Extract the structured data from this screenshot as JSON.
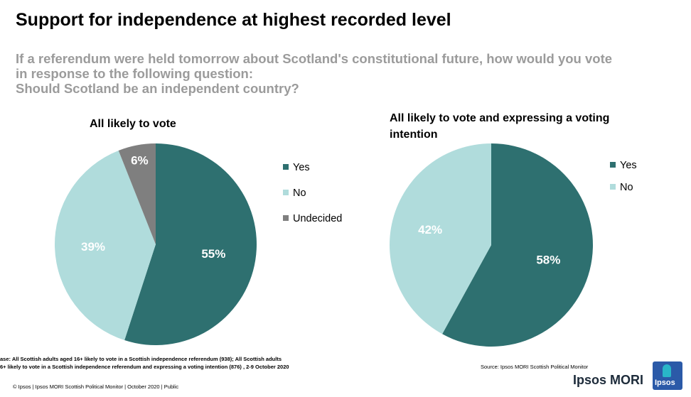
{
  "title": "Support for independence at highest recorded level",
  "question": {
    "line1": "If a referendum were held tomorrow about Scotland's constitutional future, how would you vote",
    "line2": "in response to the following question:",
    "line3": "Should Scotland be an independent country?"
  },
  "colors": {
    "yes": "#2e7070",
    "no": "#b0dcdc",
    "undecided": "#7f7f7f"
  },
  "chart_data": [
    {
      "type": "pie",
      "title": "All likely to vote",
      "slices": [
        {
          "label": "Yes",
          "value": 55,
          "display": "55%"
        },
        {
          "label": "No",
          "value": 39,
          "display": "39%"
        },
        {
          "label": "Undecided",
          "value": 6,
          "display": "6%"
        }
      ],
      "legend_position": "right"
    },
    {
      "type": "pie",
      "title": "All likely to vote and expressing a voting intention",
      "slices": [
        {
          "label": "Yes",
          "value": 58,
          "display": "58%"
        },
        {
          "label": "No",
          "value": 42,
          "display": "42%"
        }
      ],
      "legend_position": "right"
    }
  ],
  "base_note": {
    "line1": "ase: All Scottish adults aged 16+ likely to vote in a Scottish independence referendum (938); All Scottish adults",
    "line2": "6+ likely to vote in a Scottish independence referendum and expressing a voting intention (876) , 2-9 October 2020"
  },
  "source": "Source: Ipsos MORI Scottish Political Monitor",
  "footer": "© Ipsos | Ipsos MORI Scottish Political Monitor | October 2020 | Public",
  "brand": "Ipsos MORI",
  "logo_text": "Ipsos"
}
